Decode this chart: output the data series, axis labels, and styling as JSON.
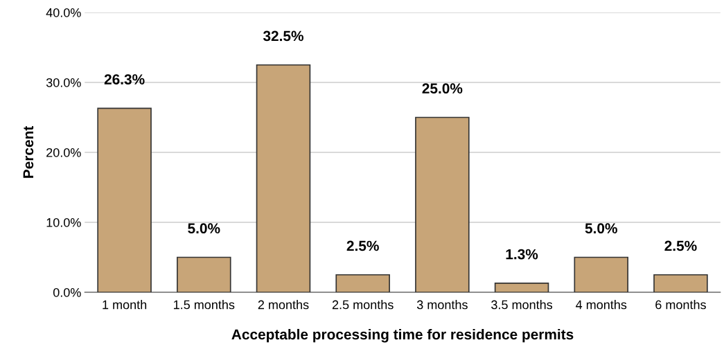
{
  "chart_data": {
    "type": "bar",
    "xlabel": "Acceptable processing time for residence permits",
    "ylabel": "Percent",
    "categories": [
      "1 month",
      "1.5 months",
      "2 months",
      "2.5 months",
      "3 months",
      "3.5 months",
      "4 months",
      "6 months"
    ],
    "values": [
      26.3,
      5.0,
      32.5,
      2.5,
      25.0,
      1.3,
      5.0,
      2.5
    ],
    "value_labels": [
      "26.3%",
      "5.0%",
      "32.5%",
      "2.5%",
      "25.0%",
      "1.3%",
      "5.0%",
      "2.5%"
    ],
    "color": "#c8a578",
    "ylim": [
      0,
      40
    ],
    "yticks": [
      {
        "value": 0,
        "label": "0.0%"
      },
      {
        "value": 10,
        "label": "10.0%"
      },
      {
        "value": 20,
        "label": "20.0%"
      },
      {
        "value": 30,
        "label": "30.0%"
      },
      {
        "value": 40,
        "label": "40.0%"
      }
    ],
    "grid": "y",
    "legend": false
  }
}
